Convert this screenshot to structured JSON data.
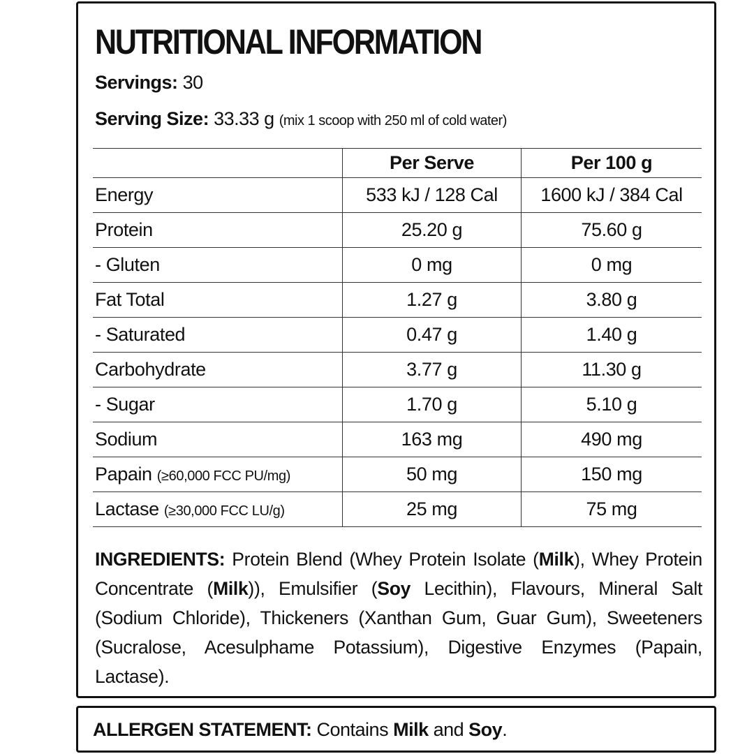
{
  "title": "NUTRITIONAL INFORMATION",
  "servings": {
    "label": "Servings:",
    "value": "30"
  },
  "serving_size": {
    "label": "Serving Size:",
    "value": "33.33 g",
    "note": "(mix 1 scoop with 250 ml of cold water)"
  },
  "table": {
    "headers": [
      "",
      "Per Serve",
      "Per 100 g"
    ],
    "rows": [
      {
        "name": "Energy",
        "note": "",
        "per_serve": "533 kJ / 128 Cal",
        "per_100g": "1600 kJ / 384 Cal"
      },
      {
        "name": "Protein",
        "note": "",
        "per_serve": "25.20 g",
        "per_100g": "75.60 g"
      },
      {
        "name": "- Gluten",
        "note": "",
        "per_serve": "0 mg",
        "per_100g": "0 mg"
      },
      {
        "name": "Fat Total",
        "note": "",
        "per_serve": "1.27 g",
        "per_100g": "3.80 g"
      },
      {
        "name": "- Saturated",
        "note": "",
        "per_serve": "0.47 g",
        "per_100g": "1.40 g"
      },
      {
        "name": "Carbohydrate",
        "note": "",
        "per_serve": "3.77 g",
        "per_100g": "11.30 g"
      },
      {
        "name": "- Sugar",
        "note": "",
        "per_serve": "1.70 g",
        "per_100g": "5.10 g"
      },
      {
        "name": "Sodium",
        "note": "",
        "per_serve": "163 mg",
        "per_100g": "490 mg"
      },
      {
        "name": "Papain",
        "note": "(≥60,000 FCC PU/mg)",
        "per_serve": "50 mg",
        "per_100g": "150 mg"
      },
      {
        "name": "Lactase",
        "note": "(≥30,000 FCC LU/g)",
        "per_serve": "25 mg",
        "per_100g": "75 mg"
      }
    ]
  },
  "ingredients": {
    "label": "INGREDIENTS:",
    "parts": [
      " Protein Blend (Whey Protein Isolate (",
      "Milk",
      "), Whey Protein Concentrate (",
      "Milk",
      ")), Emulsifier (",
      "Soy",
      " Lecithin), Flavours, Mineral Salt (Sodium Chloride), Thickeners (Xanthan Gum, Guar Gum), Sweeteners (Sucralose, Acesulphame Potassium), Digestive Enzymes (Papain, Lactase)."
    ]
  },
  "allergen": {
    "label": "ALLERGEN STATEMENT:",
    "parts": [
      " Contains ",
      "Milk",
      " and ",
      "Soy",
      "."
    ]
  }
}
